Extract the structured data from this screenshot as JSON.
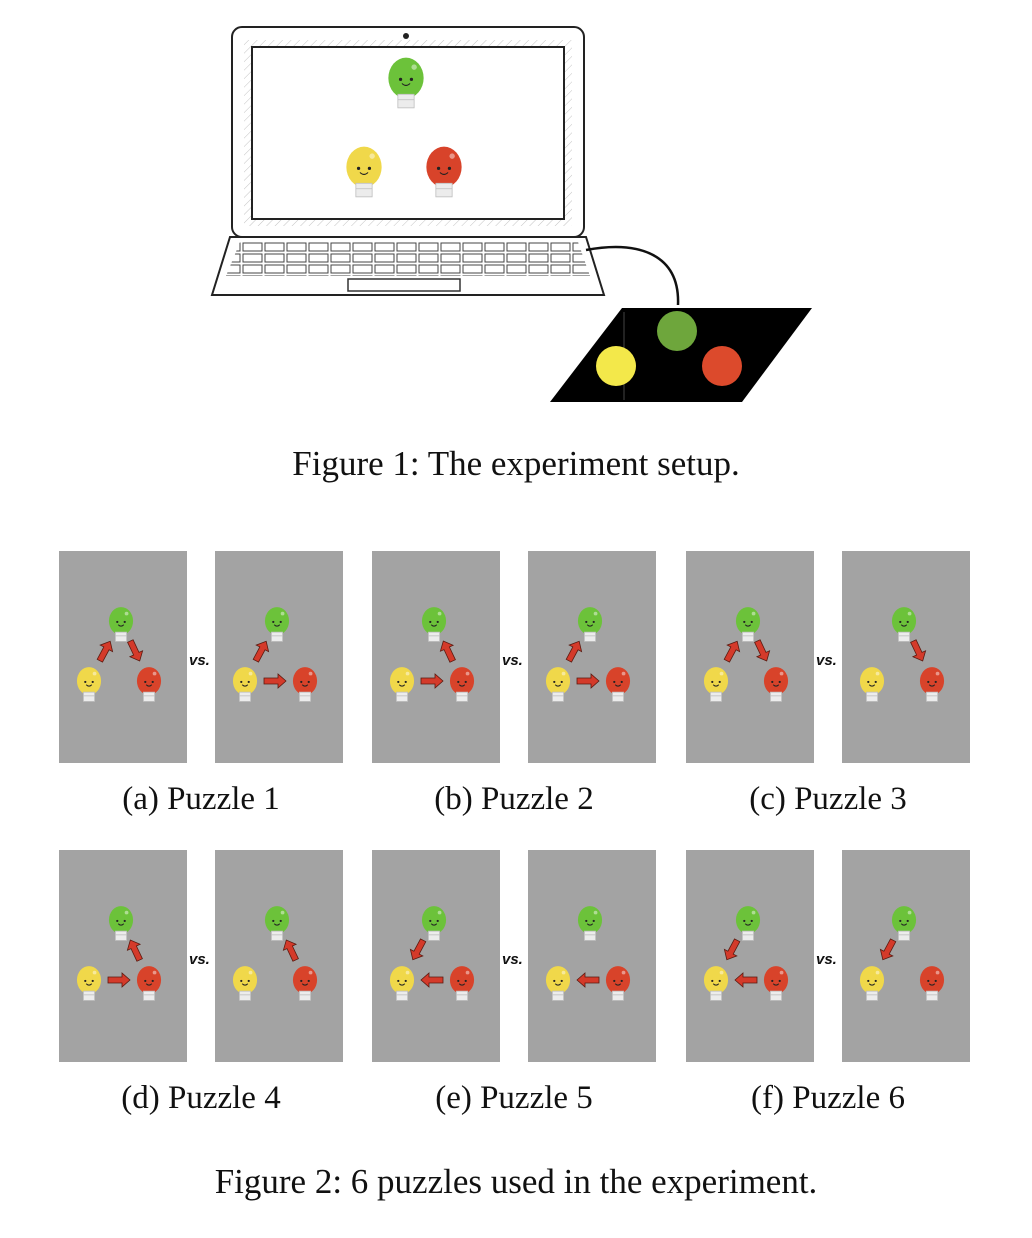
{
  "figure1": {
    "caption": "Figure 1: The experiment setup.",
    "screen_bulbs": [
      "green",
      "yellow",
      "red"
    ],
    "button_colors": [
      "#f3e84a",
      "#6ea63c",
      "#dc4a2c"
    ]
  },
  "figure2": {
    "caption": "Figure 2: 6 puzzles used in the experiment.",
    "vs_label": "vs.",
    "colors": {
      "green": "#6cc23a",
      "yellow": "#f0d84a",
      "red": "#d8432a",
      "arrow": "#d43a2a",
      "panel": "#a3a3a3"
    },
    "puzzles": [
      {
        "label": "(a) Puzzle 1",
        "left": [
          [
            "yellow",
            "green"
          ],
          [
            "green",
            "red"
          ]
        ],
        "right": [
          [
            "yellow",
            "green"
          ],
          [
            "yellow",
            "red"
          ]
        ]
      },
      {
        "label": "(b) Puzzle 2",
        "left": [
          [
            "red",
            "green"
          ],
          [
            "yellow",
            "red"
          ]
        ],
        "right": [
          [
            "yellow",
            "green"
          ],
          [
            "yellow",
            "red"
          ]
        ]
      },
      {
        "label": "(c) Puzzle 3",
        "left": [
          [
            "yellow",
            "green"
          ],
          [
            "green",
            "red"
          ]
        ],
        "right": [
          [
            "green",
            "red"
          ]
        ]
      },
      {
        "label": "(d) Puzzle 4",
        "left": [
          [
            "red",
            "green"
          ],
          [
            "yellow",
            "red"
          ]
        ],
        "right": [
          [
            "red",
            "green"
          ]
        ]
      },
      {
        "label": "(e) Puzzle 5",
        "left": [
          [
            "green",
            "yellow"
          ],
          [
            "red",
            "yellow"
          ]
        ],
        "right": [
          [
            "red",
            "yellow"
          ]
        ]
      },
      {
        "label": "(f) Puzzle 6",
        "left": [
          [
            "green",
            "yellow"
          ],
          [
            "red",
            "yellow"
          ]
        ],
        "right": [
          [
            "green",
            "yellow"
          ]
        ]
      }
    ]
  }
}
